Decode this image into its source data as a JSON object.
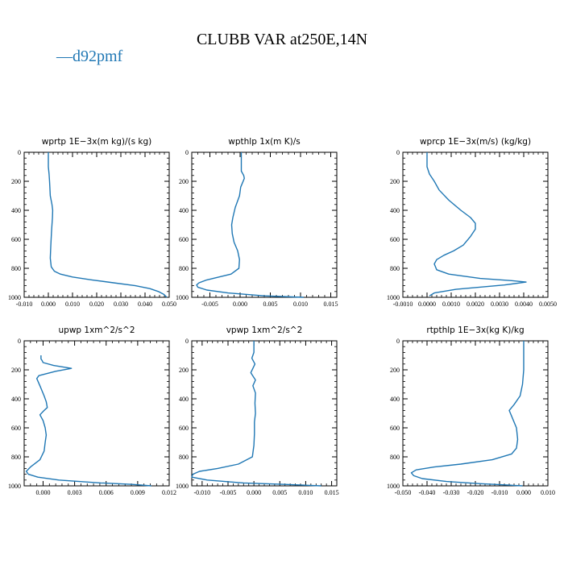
{
  "figure": {
    "title": "CLUBB VAR at250E,14N",
    "legend_label": "d92pmf",
    "legend_marker": "—",
    "line_color": "#1f77b4"
  },
  "chart_data": [
    {
      "type": "line",
      "title": "wprtp   1E−3x(m kg)/(s kg)",
      "xlim": [
        -0.01,
        0.05
      ],
      "ylim": [
        1000,
        0
      ],
      "xticks": [
        -0.01,
        0.0,
        0.01,
        0.02,
        0.03,
        0.04,
        0.05
      ],
      "xtick_labels": [
        "-0.010",
        "0.000",
        "0.010",
        "0.020",
        "0.030",
        "0.040",
        "0.050"
      ],
      "yticks": [
        0,
        200,
        400,
        600,
        800,
        1000
      ],
      "ytick_labels": [
        "0",
        "200",
        "400",
        "600",
        "800",
        "1000"
      ],
      "series": [
        {
          "name": "d92pmf",
          "x": [
            0.0,
            0.0,
            0.0003,
            0.0005,
            0.0008,
            0.0015,
            0.0018,
            0.0017,
            0.0015,
            0.0013,
            0.001,
            0.0008,
            0.0012,
            0.0025,
            0.005,
            0.01,
            0.018,
            0.027,
            0.036,
            0.042,
            0.0455,
            0.0478,
            0.049
          ],
          "y": [
            0,
            100,
            150,
            200,
            300,
            360,
            400,
            450,
            500,
            550,
            650,
            730,
            790,
            820,
            840,
            860,
            880,
            900,
            920,
            940,
            960,
            980,
            1000
          ]
        }
      ]
    },
    {
      "type": "line",
      "title": "wpthlp   1x(m K)/s",
      "xlim": [
        -0.008,
        0.016
      ],
      "ylim": [
        1000,
        0
      ],
      "xticks": [
        -0.005,
        0.0,
        0.005,
        0.01,
        0.015
      ],
      "xtick_labels": [
        "-0.005",
        "0.000",
        "0.005",
        "0.010",
        "0.015"
      ],
      "yticks": [
        0,
        200,
        400,
        600,
        800,
        1000
      ],
      "ytick_labels": [
        "0",
        "200",
        "400",
        "600",
        "800",
        "1000"
      ],
      "series": [
        {
          "name": "d92pmf",
          "x": [
            0.0002,
            0.0002,
            0.0006,
            0.0007,
            0.0004,
            0.0001,
            -0.0001,
            -0.0008,
            -0.0012,
            -0.0014,
            -0.0013,
            -0.001,
            -0.0004,
            -0.0001,
            -0.0002,
            -0.0015,
            -0.0035,
            -0.0055,
            -0.0068,
            -0.0072,
            -0.007,
            -0.0055,
            -0.002,
            0.004,
            0.0105
          ],
          "y": [
            0,
            130,
            160,
            180,
            210,
            240,
            300,
            380,
            450,
            500,
            560,
            620,
            680,
            740,
            800,
            840,
            860,
            880,
            900,
            915,
            930,
            950,
            970,
            990,
            1000
          ]
        }
      ]
    },
    {
      "type": "line",
      "title": "wprcp   1E−3x(m/s) (kg/kg)",
      "xlim": [
        -0.001,
        0.005
      ],
      "ylim": [
        1000,
        0
      ],
      "xticks": [
        -0.001,
        0.0,
        0.001,
        0.002,
        0.003,
        0.004,
        0.005
      ],
      "xtick_labels": [
        "-0.0010",
        "0.0000",
        "0.0010",
        "0.0020",
        "0.0030",
        "0.0040",
        "0.0050"
      ],
      "yticks": [
        0,
        200,
        400,
        600,
        800,
        1000
      ],
      "ytick_labels": [
        "0",
        "200",
        "400",
        "600",
        "800",
        "1000"
      ],
      "series": [
        {
          "name": "d92pmf",
          "x": [
            0.0,
            0.0,
            0.0001,
            0.0003,
            0.0005,
            0.0009,
            0.0014,
            0.0018,
            0.002,
            0.002,
            0.0018,
            0.0015,
            0.0011,
            0.0007,
            0.0004,
            0.0003,
            0.0004,
            0.0009,
            0.0022,
            0.0035,
            0.0041,
            0.0032,
            0.0012,
            0.0003,
            0.0001
          ],
          "y": [
            0,
            100,
            150,
            200,
            260,
            330,
            400,
            450,
            490,
            530,
            580,
            640,
            680,
            710,
            740,
            770,
            810,
            840,
            870,
            885,
            895,
            915,
            945,
            970,
            990
          ]
        }
      ]
    },
    {
      "type": "line",
      "title": "upwp   1xm^2/s^2",
      "xlim": [
        -0.0018,
        0.012
      ],
      "ylim": [
        1000,
        0
      ],
      "xticks": [
        0.0,
        0.003,
        0.006,
        0.009,
        0.012
      ],
      "xtick_labels": [
        "0.000",
        "0.003",
        "0.006",
        "0.009",
        "0.012"
      ],
      "yticks": [
        0,
        200,
        400,
        600,
        800,
        1000
      ],
      "ytick_labels": [
        "0",
        "200",
        "400",
        "600",
        "800",
        "1000"
      ],
      "series": [
        {
          "name": "d92pmf",
          "x": [
            -0.0002,
            -0.0002,
            -0.0001,
            0.0,
            0.001,
            0.0027,
            0.0012,
            -0.0004,
            -0.0006,
            -0.0003,
            0.0001,
            0.0003,
            0.0004,
            0.0001,
            -0.0003,
            0.0,
            0.0002,
            0.0003,
            0.0002,
            0.0001,
            -0.0003,
            -0.0012,
            -0.0016,
            -0.0014,
            -0.0005,
            0.0015,
            0.0055,
            0.0085,
            0.0103
          ],
          "y": [
            100,
            125,
            135,
            150,
            170,
            190,
            210,
            240,
            260,
            310,
            380,
            420,
            460,
            480,
            510,
            550,
            600,
            650,
            700,
            760,
            820,
            870,
            900,
            920,
            940,
            960,
            980,
            990,
            1000
          ]
        }
      ]
    },
    {
      "type": "line",
      "title": "vpwp   1xm^2/s^2",
      "xlim": [
        -0.012,
        0.016
      ],
      "ylim": [
        1000,
        0
      ],
      "xticks": [
        -0.01,
        -0.005,
        0.0,
        0.005,
        0.01,
        0.015
      ],
      "xtick_labels": [
        "-0.010",
        "-0.005",
        "0.000",
        "0.005",
        "0.010",
        "0.015"
      ],
      "yticks": [
        0,
        200,
        400,
        600,
        800,
        1000
      ],
      "ytick_labels": [
        "0",
        "200",
        "400",
        "600",
        "800",
        "1000"
      ],
      "series": [
        {
          "name": "d92pmf",
          "x": [
            0.0,
            0.0,
            -0.0004,
            0.0002,
            -0.0006,
            0.0003,
            -0.0002,
            0.0003,
            0.0002,
            0.0003,
            0.0001,
            0.0001,
            0.0,
            -0.0003,
            -0.003,
            -0.007,
            -0.0105,
            -0.0118,
            -0.012,
            -0.009,
            -0.002,
            0.006,
            0.013
          ],
          "y": [
            0,
            80,
            120,
            160,
            220,
            270,
            310,
            360,
            430,
            500,
            560,
            640,
            720,
            800,
            850,
            880,
            900,
            920,
            940,
            960,
            980,
            990,
            1000
          ]
        }
      ]
    },
    {
      "type": "line",
      "title": "rtpthlp   1E−3x(kg K)/kg",
      "xlim": [
        -0.05,
        0.01
      ],
      "ylim": [
        1000,
        0
      ],
      "xticks": [
        -0.05,
        -0.04,
        -0.03,
        -0.02,
        -0.01,
        0.0,
        0.01
      ],
      "xtick_labels": [
        "-0.050",
        "-0.040",
        "-0.030",
        "-0.020",
        "-0.010",
        "0.000",
        "0.010"
      ],
      "yticks": [
        0,
        200,
        400,
        600,
        800,
        1000
      ],
      "ytick_labels": [
        "0",
        "200",
        "400",
        "600",
        "800",
        "1000"
      ],
      "series": [
        {
          "name": "d92pmf",
          "x": [
            0.0,
            0.0,
            -0.0005,
            -0.0015,
            -0.004,
            -0.006,
            -0.0045,
            -0.003,
            -0.0025,
            -0.003,
            -0.005,
            -0.013,
            -0.026,
            -0.037,
            -0.0445,
            -0.0465,
            -0.0455,
            -0.042,
            -0.032,
            -0.018,
            -0.006,
            -0.0005
          ],
          "y": [
            0,
            200,
            300,
            380,
            440,
            480,
            540,
            600,
            680,
            740,
            780,
            820,
            850,
            870,
            890,
            910,
            930,
            950,
            970,
            985,
            995,
            1000
          ]
        }
      ]
    }
  ]
}
